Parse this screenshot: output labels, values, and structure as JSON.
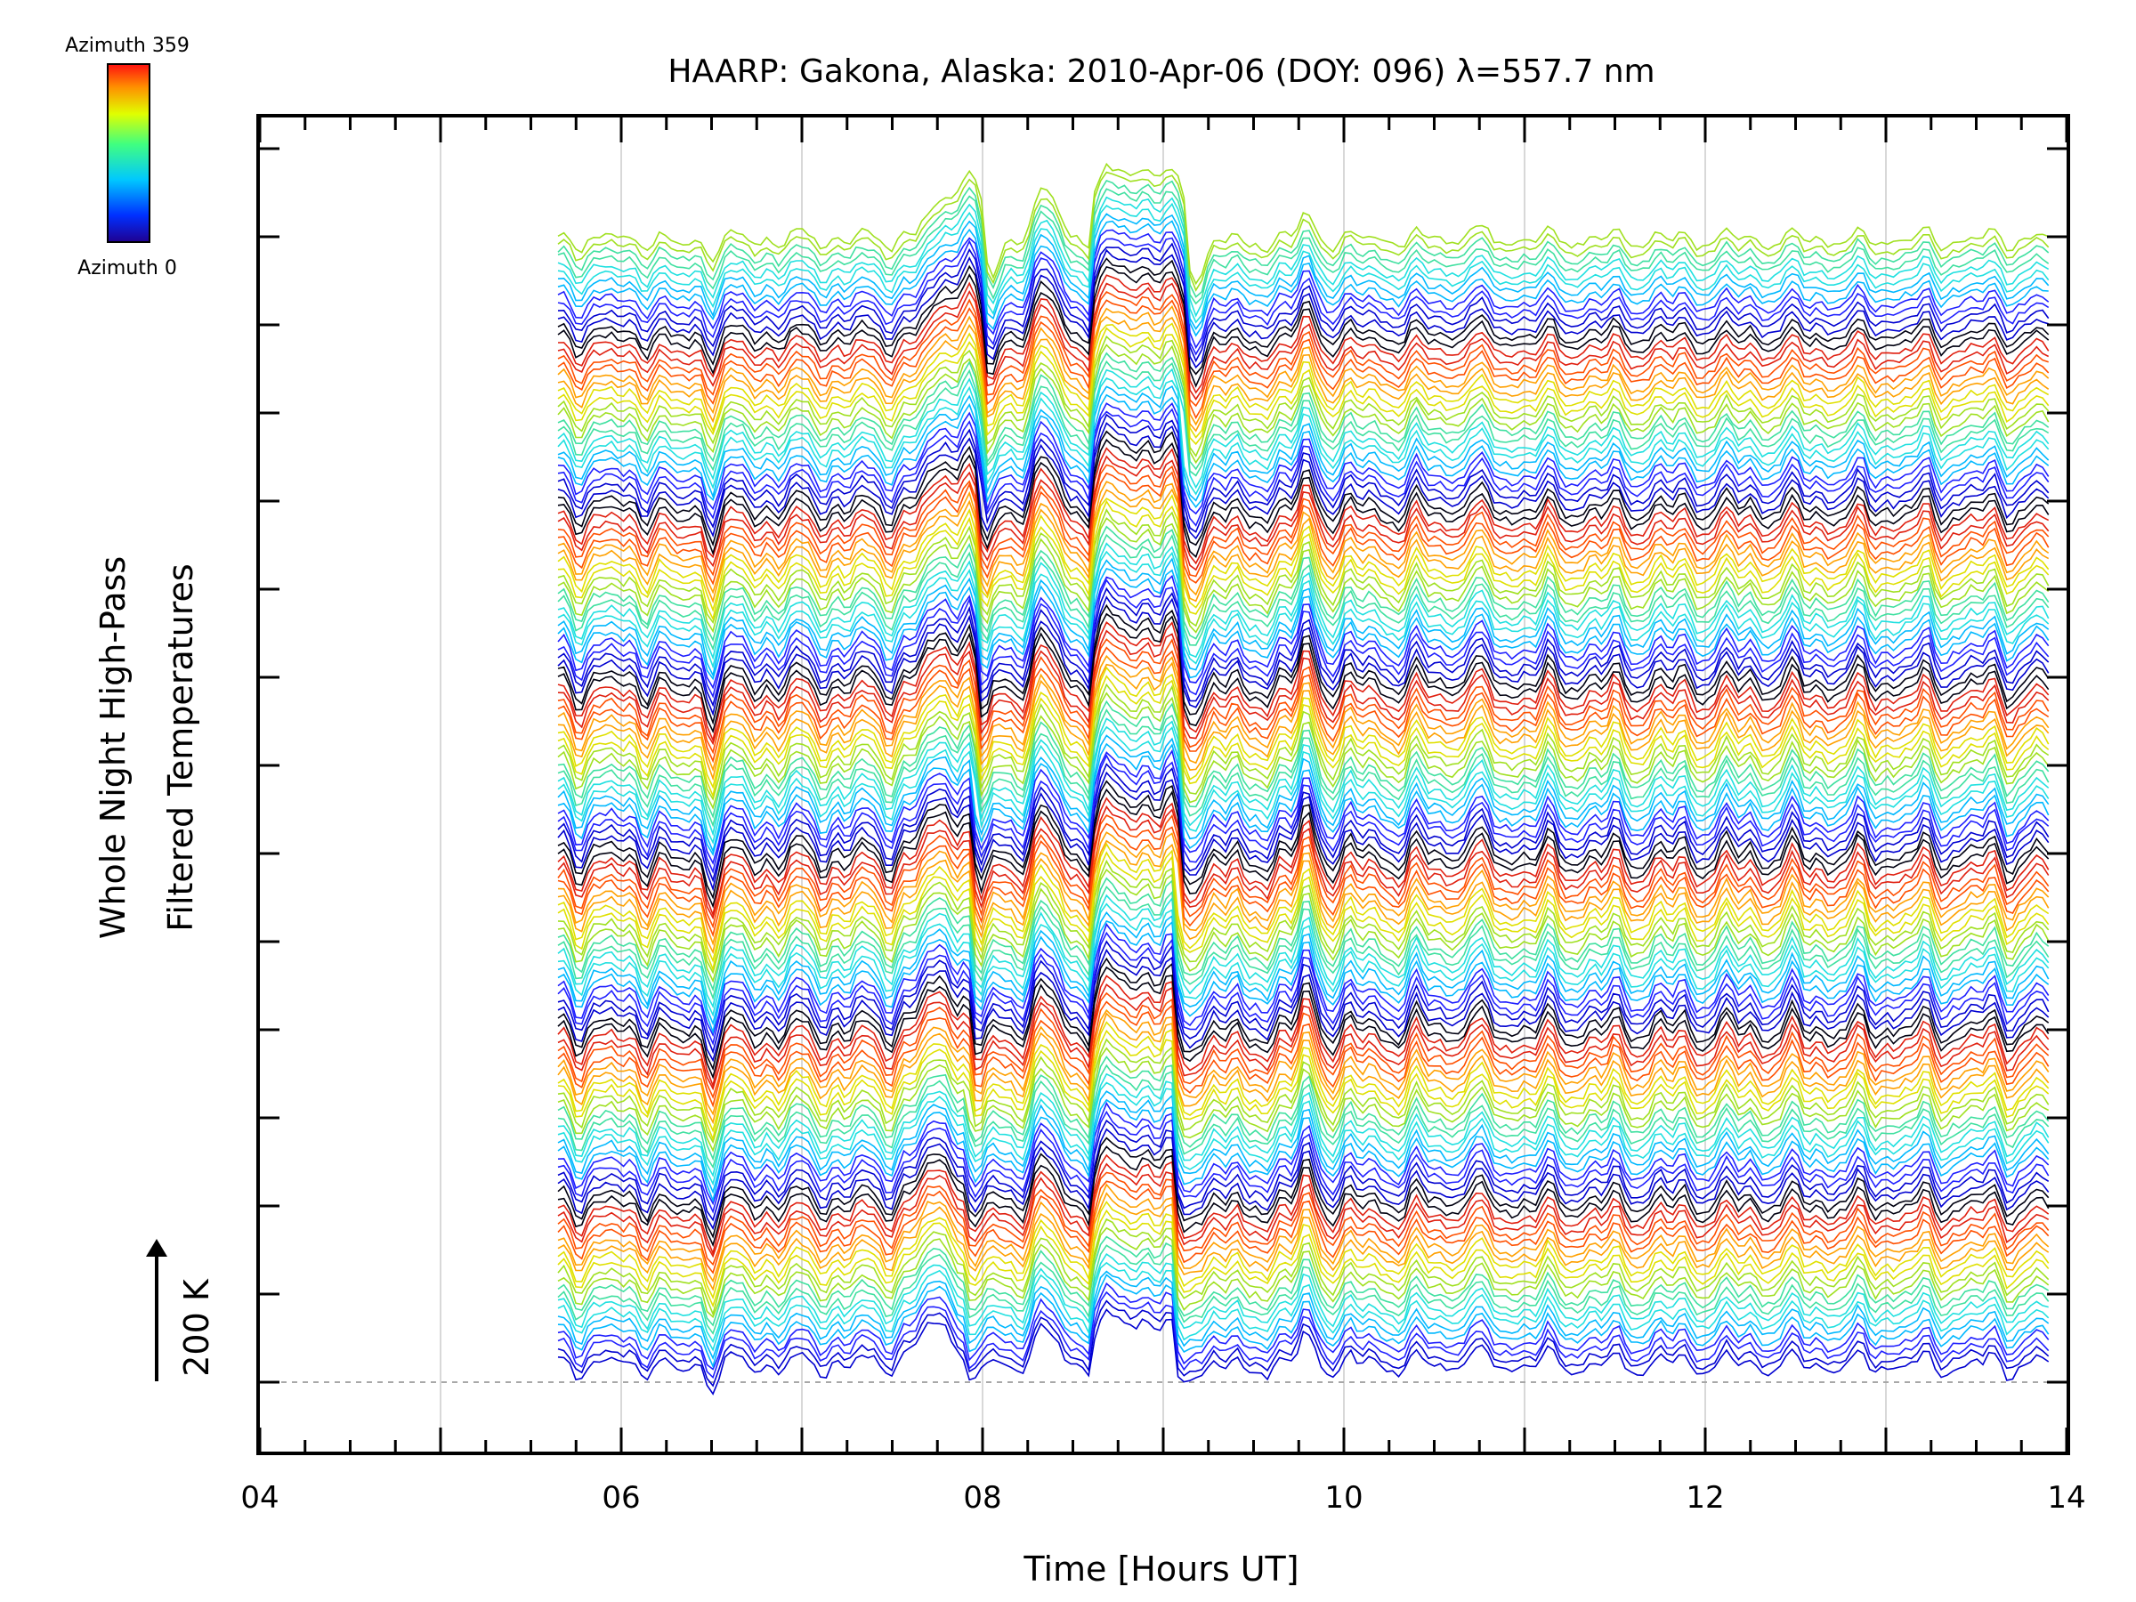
{
  "chart_data": {
    "type": "line",
    "title": "HAARP: Gakona,  Alaska: 2010-Apr-06 (DOY: 096) λ=557.7 nm",
    "xlabel": "Time [Hours UT]",
    "ylabel": [
      "Whole Night High-Pass",
      "Filtered Temperatures"
    ],
    "xlim": [
      4,
      14
    ],
    "x_ticks": [
      "04",
      "06",
      "08",
      "10",
      "12",
      "14"
    ],
    "x_vertical_grid": [
      5,
      6,
      7,
      8,
      9,
      10,
      11,
      12,
      13
    ],
    "scale_bar": {
      "label": "200 K",
      "value_K": 200
    },
    "colorbar": {
      "top_label": "Azimuth 359",
      "bottom_label": "Azimuth 0",
      "colormap": "rainbow"
    },
    "data_start_hour": 5.65,
    "data_end_hour": 13.9,
    "stack_count": 144,
    "stack_spacing_K": 20.2,
    "events": [
      {
        "name": "temperature drop",
        "start_hour": 7.9,
        "end_hour": 8.05
      },
      {
        "name": "temperature drop",
        "start_hour": 9.05,
        "end_hour": 9.15
      }
    ],
    "series_colors": [
      "#0000d0",
      "#2020ff",
      "#00b8ff",
      "#20e0e0",
      "#40e0a0",
      "#a0e020",
      "#e0e000",
      "#ffa000",
      "#ff5000",
      "#e02010",
      "#000010"
    ]
  }
}
